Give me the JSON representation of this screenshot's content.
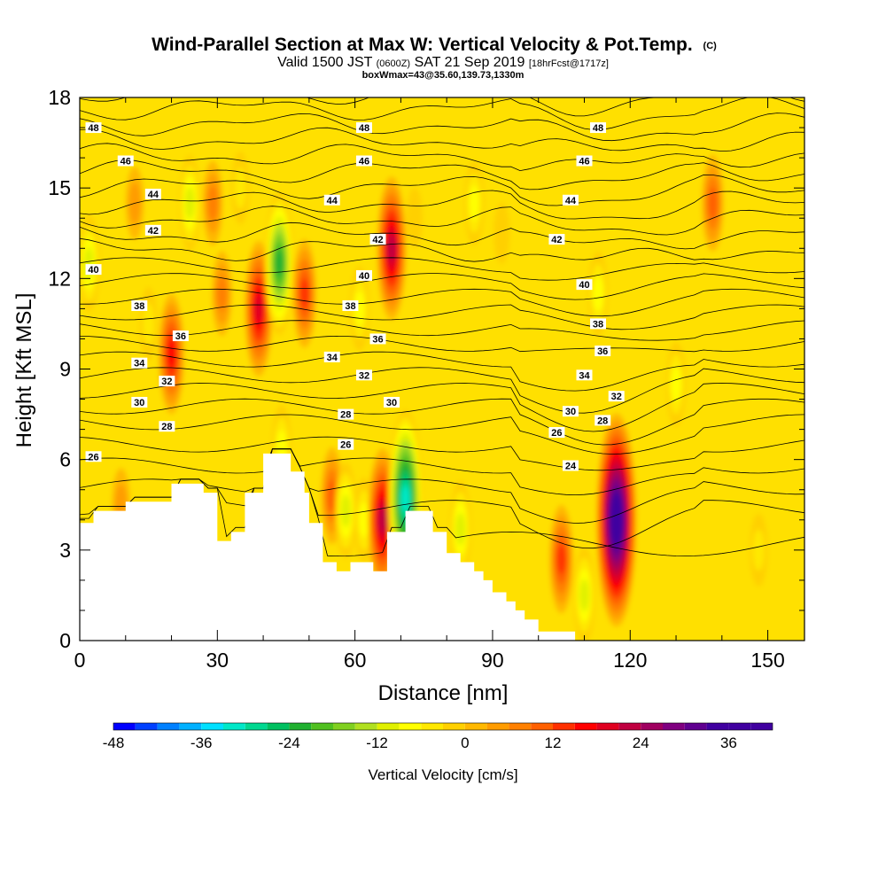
{
  "header": {
    "title": "Wind-Parallel Section at Max W: Vertical Velocity & Pot.Temp.",
    "copyright": "(C)",
    "valid_prefix": "Valid 1500 JST",
    "valid_utc": "(0600Z)",
    "valid_date": "SAT 21 Sep 2019",
    "forecast": "[18hrFcst@1717z]",
    "box_info": "boxWmax=43@35.60,139.73,1330m"
  },
  "chart_data": {
    "type": "heatmap",
    "xlabel": "Distance [nm]",
    "ylabel": "Height [Kft MSL]",
    "xlim": [
      0,
      158
    ],
    "ylim": [
      0,
      18
    ],
    "x_ticks": [
      "0",
      "30",
      "60",
      "90",
      "120",
      "150"
    ],
    "y_ticks": [
      "0",
      "3",
      "6",
      "9",
      "12",
      "15",
      "18"
    ],
    "colorbar": {
      "title": "Vertical Velocity [cm/s]",
      "min": -48,
      "max": 42,
      "step": 3,
      "tick_labels": [
        "-48",
        "-36",
        "-24",
        "-12",
        "0",
        "12",
        "24",
        "36"
      ],
      "colors": [
        "#0000ff",
        "#0040ff",
        "#0080ff",
        "#00b0ff",
        "#00e0ff",
        "#00e8c8",
        "#00d890",
        "#00c060",
        "#20b030",
        "#50c020",
        "#80d020",
        "#b0e020",
        "#e0f000",
        "#ffff00",
        "#ffe800",
        "#ffd000",
        "#ffb800",
        "#ff9c00",
        "#ff8000",
        "#ff6000",
        "#ff3000",
        "#ff0000",
        "#e00020",
        "#c00040",
        "#a00060",
        "#800080",
        "#600090",
        "#4000a0",
        "#4000a0",
        "#4000a0"
      ]
    },
    "terrain": [
      [
        0,
        3.9
      ],
      [
        3,
        3.9
      ],
      [
        3,
        4.3
      ],
      [
        10,
        4.3
      ],
      [
        10,
        4.6
      ],
      [
        20,
        4.6
      ],
      [
        20,
        5.2
      ],
      [
        27,
        5.2
      ],
      [
        27,
        4.9
      ],
      [
        30,
        4.9
      ],
      [
        30,
        3.3
      ],
      [
        33,
        3.3
      ],
      [
        33,
        3.6
      ],
      [
        36,
        3.6
      ],
      [
        36,
        4.9
      ],
      [
        40,
        4.9
      ],
      [
        40,
        6.2
      ],
      [
        46,
        6.2
      ],
      [
        46,
        5.6
      ],
      [
        49,
        5.6
      ],
      [
        49,
        4.9
      ],
      [
        50,
        4.9
      ],
      [
        50,
        3.9
      ],
      [
        53,
        3.9
      ],
      [
        53,
        2.6
      ],
      [
        56,
        2.6
      ],
      [
        56,
        2.3
      ],
      [
        59,
        2.3
      ],
      [
        59,
        2.6
      ],
      [
        64,
        2.6
      ],
      [
        64,
        2.3
      ],
      [
        67,
        2.3
      ],
      [
        67,
        3.6
      ],
      [
        71,
        3.6
      ],
      [
        71,
        4.3
      ],
      [
        77,
        4.3
      ],
      [
        77,
        3.6
      ],
      [
        80,
        3.6
      ],
      [
        80,
        2.9
      ],
      [
        83,
        2.9
      ],
      [
        83,
        2.6
      ],
      [
        86,
        2.6
      ],
      [
        86,
        2.3
      ],
      [
        88,
        2.3
      ],
      [
        88,
        2.0
      ],
      [
        90,
        2.0
      ],
      [
        90,
        1.6
      ],
      [
        93,
        1.6
      ],
      [
        93,
        1.3
      ],
      [
        95,
        1.3
      ],
      [
        95,
        1.0
      ],
      [
        97,
        1.0
      ],
      [
        97,
        0.7
      ],
      [
        100,
        0.7
      ],
      [
        100,
        0.3
      ],
      [
        108,
        0.3
      ],
      [
        108,
        0
      ]
    ],
    "vertical_velocity_features": [
      {
        "x": 2,
        "z": 12.5,
        "w": -12
      },
      {
        "x": 9,
        "z": 4.5,
        "w": 6
      },
      {
        "x": 12,
        "z": 14.5,
        "w": 6
      },
      {
        "x": 15,
        "z": 10.5,
        "w": -6
      },
      {
        "x": 20,
        "z": 9.5,
        "w": 18
      },
      {
        "x": 24,
        "z": 14.5,
        "w": -12
      },
      {
        "x": 29,
        "z": 14.5,
        "w": 9
      },
      {
        "x": 31,
        "z": 11.5,
        "w": 9
      },
      {
        "x": 35,
        "z": 15.0,
        "w": -6
      },
      {
        "x": 39,
        "z": 11.0,
        "w": 22
      },
      {
        "x": 43.5,
        "z": 12.5,
        "w": -24
      },
      {
        "x": 44,
        "z": 6.4,
        "w": -9
      },
      {
        "x": 49,
        "z": 11.5,
        "w": 15
      },
      {
        "x": 55,
        "z": 4.8,
        "w": 12
      },
      {
        "x": 58,
        "z": 4.3,
        "w": -12
      },
      {
        "x": 61,
        "z": 11.0,
        "w": -9
      },
      {
        "x": 62,
        "z": 4.0,
        "w": -9
      },
      {
        "x": 66,
        "z": 4.0,
        "w": 24
      },
      {
        "x": 68,
        "z": 13.0,
        "w": 24
      },
      {
        "x": 71,
        "z": 4.7,
        "w": -33
      },
      {
        "x": 73,
        "z": 14.0,
        "w": -3
      },
      {
        "x": 83,
        "z": 3.7,
        "w": -12
      },
      {
        "x": 86,
        "z": 14.5,
        "w": -9
      },
      {
        "x": 92,
        "z": 13.5,
        "w": -3
      },
      {
        "x": 105,
        "z": 2.7,
        "w": 15
      },
      {
        "x": 110,
        "z": 1.5,
        "w": -12
      },
      {
        "x": 113,
        "z": 11.5,
        "w": -9
      },
      {
        "x": 130,
        "z": 8.5,
        "w": -9
      },
      {
        "x": 117,
        "z": 4.0,
        "w": 42
      },
      {
        "x": 138,
        "z": 14.5,
        "w": 12
      },
      {
        "x": 148,
        "z": 3.0,
        "w": -6
      }
    ],
    "theta_contours": {
      "levels": [
        23,
        24,
        25,
        26,
        27,
        28,
        29,
        30,
        31,
        32,
        33,
        34,
        35,
        36,
        37,
        38,
        39,
        40,
        41,
        42,
        43,
        44,
        45,
        46,
        47,
        48,
        49
      ],
      "labels": [
        {
          "text": "26",
          "x": 3,
          "z": 6.1
        },
        {
          "text": "28",
          "x": 19,
          "z": 7.1
        },
        {
          "text": "30",
          "x": 13,
          "z": 7.9
        },
        {
          "text": "32",
          "x": 19,
          "z": 8.6
        },
        {
          "text": "34",
          "x": 13,
          "z": 9.2
        },
        {
          "text": "36",
          "x": 22,
          "z": 10.1
        },
        {
          "text": "38",
          "x": 13,
          "z": 11.1
        },
        {
          "text": "40",
          "x": 3,
          "z": 12.3
        },
        {
          "text": "42",
          "x": 16,
          "z": 13.6
        },
        {
          "text": "44",
          "x": 16,
          "z": 14.8
        },
        {
          "text": "46",
          "x": 10,
          "z": 15.9
        },
        {
          "text": "48",
          "x": 3,
          "z": 17.0
        },
        {
          "text": "26",
          "x": 58,
          "z": 6.5
        },
        {
          "text": "28",
          "x": 58,
          "z": 7.5
        },
        {
          "text": "30",
          "x": 68,
          "z": 7.9
        },
        {
          "text": "32",
          "x": 62,
          "z": 8.8
        },
        {
          "text": "34",
          "x": 55,
          "z": 9.4
        },
        {
          "text": "36",
          "x": 65,
          "z": 10.0
        },
        {
          "text": "38",
          "x": 59,
          "z": 11.1
        },
        {
          "text": "40",
          "x": 62,
          "z": 12.1
        },
        {
          "text": "42",
          "x": 65,
          "z": 13.3
        },
        {
          "text": "44",
          "x": 55,
          "z": 14.6
        },
        {
          "text": "46",
          "x": 62,
          "z": 15.9
        },
        {
          "text": "48",
          "x": 62,
          "z": 17.0
        },
        {
          "text": "24",
          "x": 107,
          "z": 5.8
        },
        {
          "text": "26",
          "x": 104,
          "z": 6.9
        },
        {
          "text": "28",
          "x": 114,
          "z": 7.3
        },
        {
          "text": "30",
          "x": 107,
          "z": 7.6
        },
        {
          "text": "32",
          "x": 117,
          "z": 8.1
        },
        {
          "text": "34",
          "x": 110,
          "z": 8.8
        },
        {
          "text": "36",
          "x": 114,
          "z": 9.6
        },
        {
          "text": "38",
          "x": 113,
          "z": 10.5
        },
        {
          "text": "40",
          "x": 110,
          "z": 11.8
        },
        {
          "text": "42",
          "x": 104,
          "z": 13.3
        },
        {
          "text": "44",
          "x": 107,
          "z": 14.6
        },
        {
          "text": "46",
          "x": 110,
          "z": 15.9
        },
        {
          "text": "48",
          "x": 113,
          "z": 17.0
        }
      ]
    }
  }
}
